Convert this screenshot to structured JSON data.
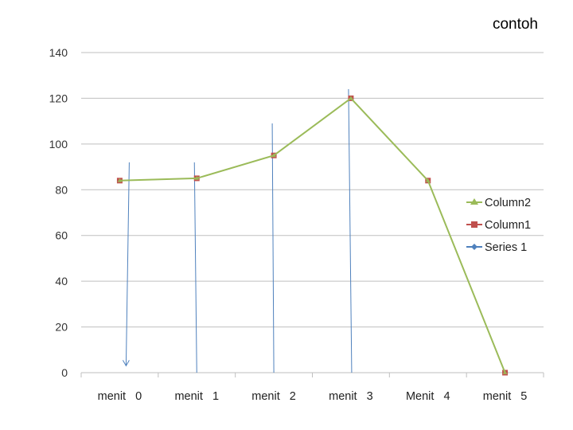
{
  "title": "contoh",
  "chart_data": {
    "type": "line",
    "title": "contoh",
    "categories": [
      "menit   0",
      "menit   1",
      "menit   2",
      "menit   3",
      "Menit   4",
      "menit   5"
    ],
    "ylim": [
      0,
      140
    ],
    "yticks": [
      0,
      20,
      40,
      60,
      80,
      100,
      120,
      140
    ],
    "grid": true,
    "legend_position": "right",
    "series": [
      {
        "name": "Column2",
        "color": "#9bbb59",
        "marker": "triangle",
        "values": [
          84,
          85,
          95,
          120,
          84,
          0
        ]
      },
      {
        "name": "Column1",
        "color": "#c0504d",
        "marker": "square",
        "values": [
          84,
          85,
          95,
          120,
          84,
          0
        ]
      },
      {
        "name": "Series 1",
        "color": "#4f81bd",
        "marker": "diamond",
        "values": [
          null,
          null,
          null,
          null,
          null,
          null
        ]
      }
    ],
    "annotations": [
      {
        "type": "arrow",
        "color": "#4f81bd",
        "category": "menit   0",
        "from": 92,
        "to": 3
      },
      {
        "type": "line",
        "color": "#4f81bd",
        "category": "menit   1",
        "from": 92,
        "to": 0
      },
      {
        "type": "line",
        "color": "#4f81bd",
        "category": "menit   2",
        "from": 109,
        "to": 0
      },
      {
        "type": "line",
        "color": "#4f81bd",
        "category": "menit   3",
        "from": 124,
        "to": 0
      }
    ]
  }
}
